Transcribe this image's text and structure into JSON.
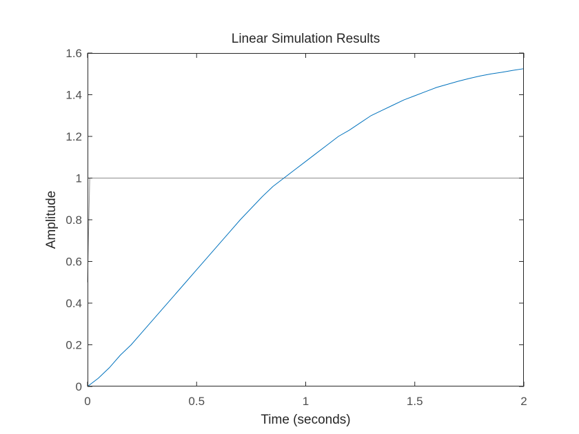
{
  "chart_data": {
    "type": "line",
    "title": "Linear Simulation Results",
    "xlabel": "Time (seconds)",
    "ylabel": "Amplitude",
    "xlim": [
      0,
      2
    ],
    "ylim": [
      0,
      1.6
    ],
    "x_ticks": [
      0,
      0.5,
      1,
      1.5,
      2
    ],
    "x_tick_labels": [
      "0",
      "0.5",
      "1",
      "1.5",
      "2"
    ],
    "y_ticks": [
      0,
      0.2,
      0.4,
      0.6,
      0.8,
      1,
      1.2,
      1.4,
      1.6
    ],
    "y_tick_labels": [
      "0",
      "0.2",
      "0.4",
      "0.6",
      "0.8",
      "1",
      "1.2",
      "1.4",
      "1.6"
    ],
    "grid": false,
    "series": [
      {
        "role": "input",
        "color": "#8c8c8c",
        "x": [
          0,
          0.01,
          0.02,
          2
        ],
        "y": [
          0.5,
          1,
          1,
          1
        ]
      },
      {
        "role": "response",
        "color": "#0072bd",
        "x": [
          0,
          0.05,
          0.1,
          0.15,
          0.2,
          0.25,
          0.3,
          0.35,
          0.4,
          0.45,
          0.5,
          0.55,
          0.6,
          0.65,
          0.7,
          0.75,
          0.8,
          0.85,
          0.9,
          0.95,
          1.0,
          1.05,
          1.1,
          1.15,
          1.2,
          1.25,
          1.3,
          1.35,
          1.4,
          1.45,
          1.5,
          1.55,
          1.6,
          1.65,
          1.7,
          1.75,
          1.8,
          1.85,
          1.9,
          1.95,
          2.0
        ],
        "y": [
          0,
          0.04,
          0.09,
          0.15,
          0.2,
          0.26,
          0.32,
          0.38,
          0.44,
          0.5,
          0.56,
          0.62,
          0.68,
          0.74,
          0.8,
          0.855,
          0.91,
          0.96,
          1.0,
          1.04,
          1.08,
          1.12,
          1.16,
          1.2,
          1.23,
          1.265,
          1.3,
          1.325,
          1.35,
          1.375,
          1.395,
          1.415,
          1.435,
          1.45,
          1.465,
          1.478,
          1.49,
          1.5,
          1.508,
          1.517,
          1.525
        ]
      }
    ]
  }
}
